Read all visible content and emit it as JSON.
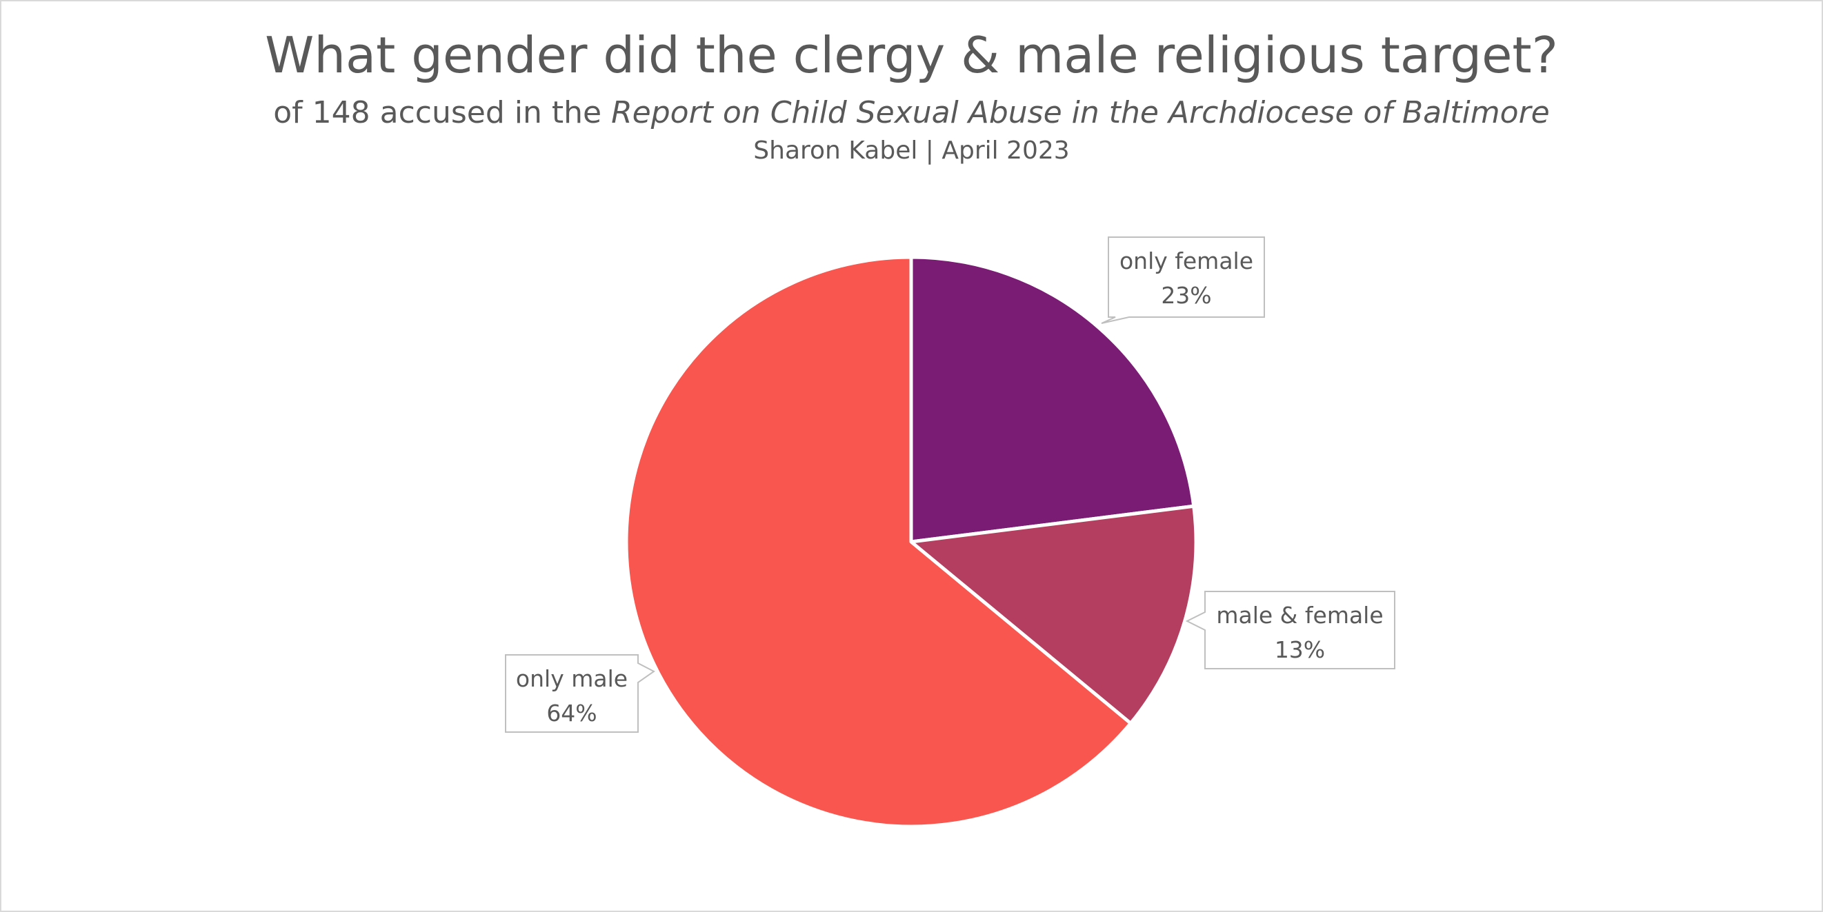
{
  "chart_data": {
    "type": "pie",
    "title": "What gender did the clergy & male religious target?",
    "subtitle_prefix": "of 148 accused in the ",
    "subtitle_italic": "Report on Child Sexual Abuse in the Archdiocese of Baltimore",
    "byline": "Sharon Kabel | April 2023",
    "slices": [
      {
        "label": "only female",
        "pct_label": "23%",
        "value": 23,
        "color": "#7b1c74"
      },
      {
        "label": "male & female",
        "pct_label": "13%",
        "value": 13,
        "color": "#b33e5f"
      },
      {
        "label": "only male",
        "pct_label": "64%",
        "value": 64,
        "color": "#f8564f"
      }
    ],
    "start_angle_deg": 0,
    "direction": "clockwise",
    "data_labels": "callout boxes with category name and percentage"
  }
}
